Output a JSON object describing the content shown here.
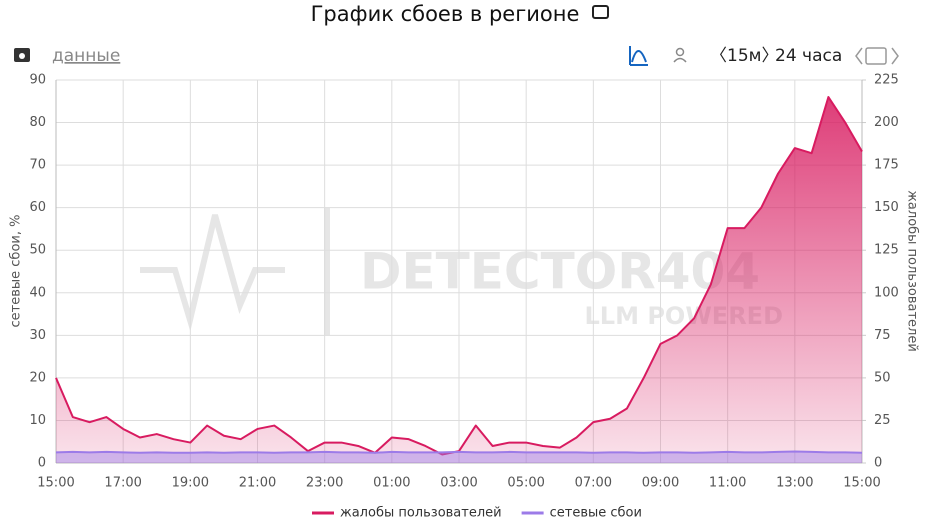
{
  "toolbar": {
    "data_link": "данные",
    "interval": "〈15м〉",
    "range": "24 часа"
  },
  "watermark": {
    "brand": "DETECTOR404",
    "tagline": "LLM POWERED"
  },
  "chart_data": {
    "type": "line",
    "title": "График сбоев в регионе",
    "y_label": "сетевые сбои, %",
    "y2_label": "жалобы пользователей",
    "categories": [
      "15:00",
      null,
      null,
      null,
      "17:00",
      null,
      null,
      null,
      "19:00",
      null,
      null,
      null,
      "21:00",
      null,
      null,
      null,
      "23:00",
      null,
      null,
      null,
      "01:00",
      null,
      null,
      null,
      "03:00",
      null,
      null,
      null,
      "05:00",
      null,
      null,
      null,
      "07:00",
      null,
      null,
      null,
      "09:00",
      null,
      null,
      null,
      "11:00",
      null,
      null,
      null,
      "13:00",
      null,
      null,
      null,
      "15:00"
    ],
    "series": [
      {
        "name": "жалобы пользователей",
        "color": "#d81b60",
        "axis": "y2",
        "values": [
          50,
          27,
          24,
          27,
          20,
          15,
          17,
          14,
          12,
          22,
          16,
          14,
          20,
          22,
          15,
          7,
          12,
          12,
          10,
          6,
          15,
          14,
          10,
          5,
          7,
          22,
          10,
          12,
          12,
          10,
          9,
          15,
          24,
          26,
          32,
          50,
          70,
          75,
          85,
          105,
          138,
          138,
          150,
          170,
          185,
          182,
          215,
          200,
          183
        ]
      },
      {
        "name": "сетевые сбои",
        "color": "#9c7be8",
        "values": [
          2.5,
          2.6,
          2.5,
          2.6,
          2.5,
          2.4,
          2.5,
          2.4,
          2.4,
          2.5,
          2.4,
          2.5,
          2.5,
          2.4,
          2.5,
          2.5,
          2.6,
          2.5,
          2.5,
          2.4,
          2.6,
          2.5,
          2.5,
          2.5,
          2.6,
          2.5,
          2.5,
          2.6,
          2.5,
          2.5,
          2.5,
          2.5,
          2.4,
          2.5,
          2.5,
          2.4,
          2.5,
          2.5,
          2.4,
          2.5,
          2.6,
          2.5,
          2.5,
          2.6,
          2.7,
          2.6,
          2.5,
          2.5,
          2.4
        ]
      }
    ],
    "ylim": [
      0,
      90
    ],
    "yticks": [
      0,
      10,
      20,
      30,
      40,
      50,
      60,
      70,
      80,
      90
    ],
    "y2lim": [
      0,
      225
    ],
    "y2ticks": [
      0,
      25,
      50,
      75,
      100,
      125,
      150,
      175,
      200,
      225
    ],
    "grid": true
  }
}
